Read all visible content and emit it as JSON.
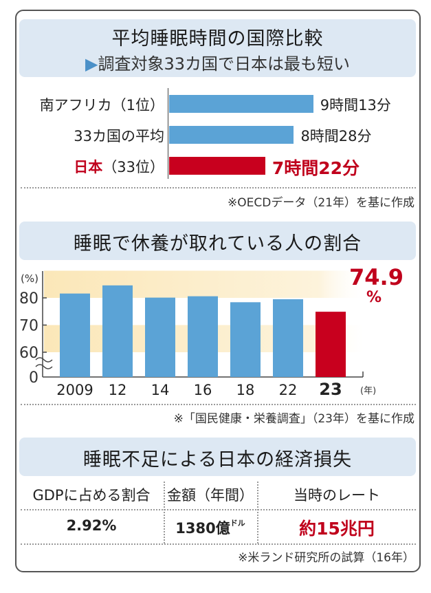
{
  "section1": {
    "title": "平均睡眠時間の国際比較",
    "subtitle": "調査対象33カ国で日本は最も短い",
    "source": "※OECDデータ（21年）を基に作成"
  },
  "section2": {
    "title": "睡眠で休養が取れている人の割合",
    "source": "※「国民健康・栄養調査」（23年）を基に作成",
    "highlight_label": "74.9",
    "highlight_unit": "%",
    "year_unit": "(年)"
  },
  "section3": {
    "title": "睡眠不足による日本の経済損失",
    "headers": [
      "GDPに占める割合",
      "金額（年間）",
      "当時のレート"
    ],
    "value_main": [
      "2.92%",
      "1380億",
      "約15兆円"
    ],
    "value_suffix": "ドル",
    "source": "※米ランド研究所の試算（16年）"
  },
  "colors": {
    "blue": "#5ba3d6",
    "red": "#c8001e",
    "header_bg": "#dde8f3",
    "band": "#fbe7b8"
  },
  "chart_data": [
    {
      "type": "bar",
      "orientation": "horizontal",
      "categories": [
        "南アフリカ（1位）",
        "33カ国の平均",
        "日本（33位）"
      ],
      "values_minutes": [
        553,
        508,
        442
      ],
      "labels": [
        "9時間13分",
        "8時間28分",
        "7時間22分"
      ],
      "highlight": "日本（33位）"
    },
    {
      "type": "bar",
      "categories": [
        "2009",
        "12",
        "14",
        "16",
        "18",
        "22",
        "23"
      ],
      "values": [
        81.6,
        84.6,
        80.1,
        80.6,
        78.4,
        79.5,
        74.9
      ],
      "ylabel": "(%)",
      "yticks": [
        0,
        60,
        70,
        80
      ],
      "ylim": [
        0,
        90
      ],
      "axis_break": true,
      "highlight": "23"
    }
  ]
}
